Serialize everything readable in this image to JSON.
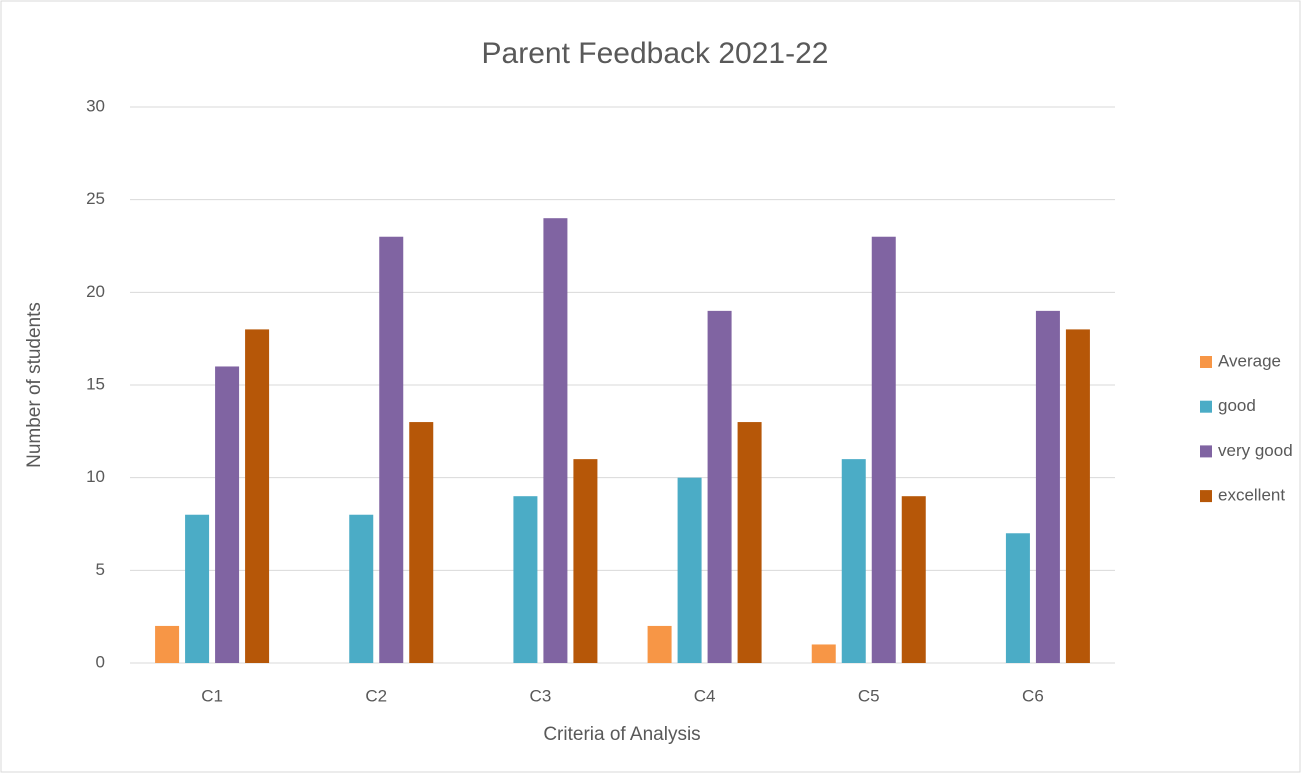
{
  "chart_data": {
    "type": "bar",
    "title": "Parent Feedback 2021-22",
    "x_label": "Criteria of Analysis",
    "y_label": "Number of students",
    "categories": [
      "C1",
      "C2",
      "C3",
      "C4",
      "C5",
      "C6"
    ],
    "series": [
      {
        "name": "Average",
        "color": "#f79646",
        "values": [
          2,
          0,
          0,
          2,
          1,
          0
        ]
      },
      {
        "name": "good",
        "color": "#4bacc6",
        "values": [
          8,
          8,
          9,
          10,
          11,
          7
        ]
      },
      {
        "name": "very good",
        "color": "#8064a2",
        "values": [
          16,
          23,
          24,
          19,
          23,
          19
        ]
      },
      {
        "name": "excellent",
        "color": "#b65708",
        "values": [
          18,
          13,
          11,
          13,
          9,
          18
        ]
      }
    ],
    "ylim": [
      0,
      30
    ],
    "yticks": [
      0,
      5,
      10,
      15,
      20,
      25,
      30
    ],
    "grid": true,
    "legend": "right"
  }
}
